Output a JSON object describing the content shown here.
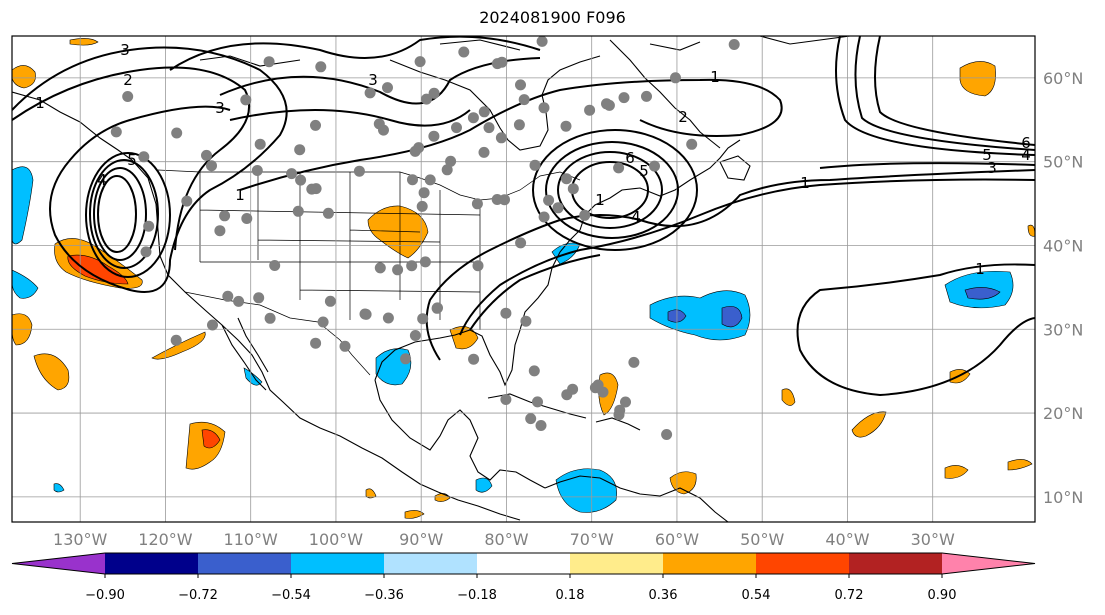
{
  "title": "2024081900 F096",
  "map": {
    "projection": "plate-carree",
    "lon_range": [
      -138,
      -18
    ],
    "lat_range": [
      7,
      65
    ],
    "lon_ticks": [
      {
        "value": -130,
        "label": "130°W"
      },
      {
        "value": -120,
        "label": "120°W"
      },
      {
        "value": -110,
        "label": "110°W"
      },
      {
        "value": -100,
        "label": "100°W"
      },
      {
        "value": -90,
        "label": "90°W"
      },
      {
        "value": -80,
        "label": "80°W"
      },
      {
        "value": -70,
        "label": "70°W"
      },
      {
        "value": -60,
        "label": "60°W"
      },
      {
        "value": -50,
        "label": "50°W"
      },
      {
        "value": -40,
        "label": "40°W"
      },
      {
        "value": -30,
        "label": "30°W"
      }
    ],
    "lat_ticks": [
      {
        "value": 60,
        "label": "60°N"
      },
      {
        "value": 50,
        "label": "50°N"
      },
      {
        "value": 40,
        "label": "40°N"
      },
      {
        "value": 30,
        "label": "30°N"
      },
      {
        "value": 20,
        "label": "20°N"
      },
      {
        "value": 10,
        "label": "10°N"
      }
    ],
    "gridlines": true,
    "contour_labels": [
      "3",
      "2",
      "1",
      "5",
      "4",
      "3",
      "1",
      "3",
      "1",
      "2",
      "1",
      "6",
      "5",
      "4",
      "6",
      "5",
      "4",
      "3",
      "1",
      "1"
    ],
    "station_count": 120
  },
  "colorbar": {
    "ticks": [
      "−0.90",
      "−0.72",
      "−0.54",
      "−0.36",
      "−0.18",
      "0.18",
      "0.36",
      "0.54",
      "0.72",
      "0.90"
    ],
    "colors": [
      "#9932cc",
      "#00008b",
      "#3a5fcd",
      "#00bfff",
      "#b0e2ff",
      "#ffffff",
      "#ffec8b",
      "#ffa500",
      "#ff4500",
      "#b22222",
      "#ff82ab"
    ],
    "extend": "both"
  }
}
